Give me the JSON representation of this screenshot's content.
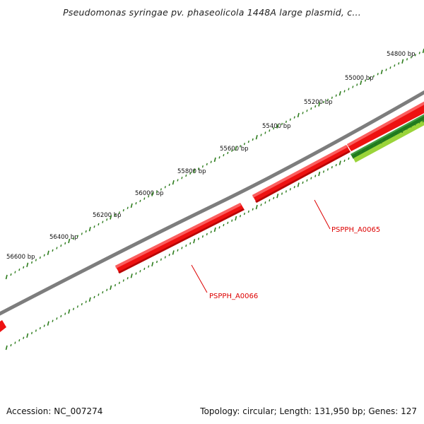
{
  "title": "Pseudomonas syringae pv. phaseolicola 1448A large plasmid, c...",
  "footer": {
    "accession": "Accession: NC_007274",
    "summary": "Topology: circular; Length: 131,950 bp; Genes: 127"
  },
  "ruler": {
    "labels": [
      "54800 bp",
      "55000 bp",
      "55200 bp",
      "55400 bp",
      "55600 bp",
      "55800 bp",
      "56000 bp",
      "56200 bp",
      "56400 bp",
      "56600 bp"
    ],
    "tick_color": "#2e7d1e"
  },
  "genes": [
    {
      "label": "PSPPH_A0065",
      "color": "#ee1111"
    },
    {
      "label": "PSPPH_A0066",
      "color": "#ee1111"
    }
  ],
  "colors": {
    "backbone": "#808080",
    "gene_red": "#ee1111",
    "gene_dark_green": "#1f7a1f",
    "gene_light_green": "#9ad43a",
    "label_red": "#dd0000"
  }
}
